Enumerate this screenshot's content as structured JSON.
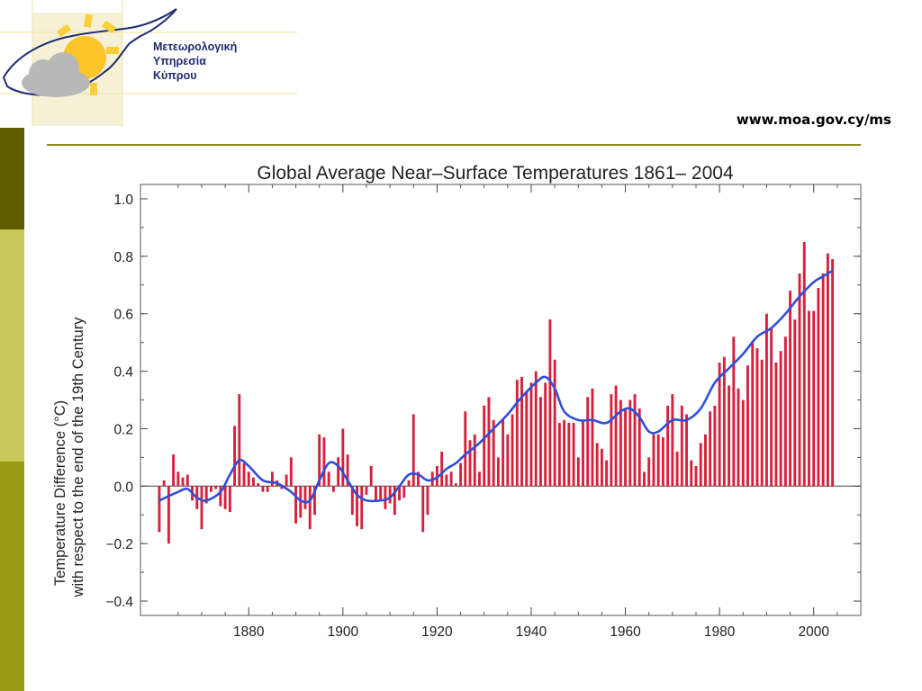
{
  "org": {
    "line1": "Μετεωρολογική",
    "line2": "Υπηρεσία",
    "line3": "Κύπρου"
  },
  "site": {
    "url": "www.moa.gov.cy/ms"
  },
  "colors": {
    "bar": "#d6203c",
    "smooth_line": "#2e4fd8",
    "rule": "#8c8a1c",
    "stripe_dark": "#5e5e00",
    "stripe_light": "#c9c95a",
    "stripe_mid": "#9a9a10",
    "org_text": "#1e2a6e"
  },
  "chart_data": {
    "type": "bar",
    "title": "Global Average Near–Surface Temperatures 1861– 2004",
    "ylabel_line1": "Temperature Difference (°C)",
    "ylabel_line2": "with respect to the end of the 19th Century",
    "xlabel": "",
    "xlim": [
      1857,
      2010
    ],
    "ylim": [
      -0.45,
      1.05
    ],
    "xticks": [
      1880,
      1900,
      1920,
      1940,
      1960,
      1980,
      2000
    ],
    "yticks": [
      -0.4,
      -0.2,
      0.0,
      0.2,
      0.4,
      0.6,
      0.8,
      1.0
    ],
    "ytick_labels": [
      "−0.4",
      "−0.2",
      "0.0",
      "0.2",
      "0.4",
      "0.6",
      "0.8",
      "1.0"
    ],
    "grid": false,
    "series": [
      {
        "kind": "bar",
        "years": [
          1861,
          1862,
          1863,
          1864,
          1865,
          1866,
          1867,
          1868,
          1869,
          1870,
          1871,
          1872,
          1873,
          1874,
          1875,
          1876,
          1877,
          1878,
          1879,
          1880,
          1881,
          1882,
          1883,
          1884,
          1885,
          1886,
          1887,
          1888,
          1889,
          1890,
          1891,
          1892,
          1893,
          1894,
          1895,
          1896,
          1897,
          1898,
          1899,
          1900,
          1901,
          1902,
          1903,
          1904,
          1905,
          1906,
          1907,
          1908,
          1909,
          1910,
          1911,
          1912,
          1913,
          1914,
          1915,
          1916,
          1917,
          1918,
          1919,
          1920,
          1921,
          1922,
          1923,
          1924,
          1925,
          1926,
          1927,
          1928,
          1929,
          1930,
          1931,
          1932,
          1933,
          1934,
          1935,
          1936,
          1937,
          1938,
          1939,
          1940,
          1941,
          1942,
          1943,
          1944,
          1945,
          1946,
          1947,
          1948,
          1949,
          1950,
          1951,
          1952,
          1953,
          1954,
          1955,
          1956,
          1957,
          1958,
          1959,
          1960,
          1961,
          1962,
          1963,
          1964,
          1965,
          1966,
          1967,
          1968,
          1969,
          1970,
          1971,
          1972,
          1973,
          1974,
          1975,
          1976,
          1977,
          1978,
          1979,
          1980,
          1981,
          1982,
          1983,
          1984,
          1985,
          1986,
          1987,
          1988,
          1989,
          1990,
          1991,
          1992,
          1993,
          1994,
          1995,
          1996,
          1997,
          1998,
          1999,
          2000,
          2001,
          2002,
          2003,
          2004
        ],
        "values": [
          -0.16,
          0.02,
          -0.2,
          0.11,
          0.05,
          0.03,
          0.04,
          -0.05,
          -0.08,
          -0.15,
          -0.06,
          -0.02,
          -0.01,
          -0.07,
          -0.08,
          -0.09,
          0.21,
          0.32,
          0.08,
          0.05,
          0.03,
          0.01,
          -0.02,
          -0.02,
          0.05,
          0.02,
          -0.01,
          0.04,
          0.1,
          -0.13,
          -0.11,
          -0.08,
          -0.15,
          -0.1,
          0.18,
          0.17,
          0.05,
          -0.02,
          0.1,
          0.2,
          0.11,
          -0.1,
          -0.14,
          -0.15,
          -0.03,
          0.07,
          -0.05,
          -0.05,
          -0.08,
          -0.06,
          -0.1,
          -0.05,
          -0.04,
          0.02,
          0.25,
          0.05,
          -0.16,
          -0.1,
          0.05,
          0.07,
          0.12,
          0.04,
          0.05,
          0.01,
          0.08,
          0.26,
          0.16,
          0.18,
          0.05,
          0.28,
          0.31,
          0.23,
          0.1,
          0.23,
          0.18,
          0.25,
          0.37,
          0.38,
          0.33,
          0.36,
          0.4,
          0.31,
          0.36,
          0.58,
          0.44,
          0.22,
          0.23,
          0.22,
          0.22,
          0.1,
          0.23,
          0.31,
          0.34,
          0.15,
          0.13,
          0.09,
          0.32,
          0.35,
          0.3,
          0.27,
          0.3,
          0.32,
          0.27,
          0.05,
          0.1,
          0.18,
          0.18,
          0.17,
          0.28,
          0.32,
          0.12,
          0.28,
          0.25,
          0.09,
          0.07,
          0.15,
          0.18,
          0.26,
          0.28,
          0.43,
          0.45,
          0.35,
          0.52,
          0.34,
          0.3,
          0.42,
          0.5,
          0.48,
          0.44,
          0.6,
          0.55,
          0.43,
          0.47,
          0.52,
          0.68,
          0.58,
          0.74,
          0.85,
          0.61,
          0.61,
          0.69,
          0.74,
          0.81,
          0.79
        ]
      },
      {
        "kind": "line",
        "years": [
          1861,
          1865,
          1867,
          1869,
          1871,
          1874,
          1876,
          1878,
          1880,
          1883,
          1886,
          1889,
          1891,
          1893,
          1895,
          1897,
          1899,
          1901,
          1903,
          1905,
          1908,
          1910,
          1912,
          1914,
          1916,
          1918,
          1920,
          1922,
          1924,
          1926,
          1929,
          1932,
          1935,
          1938,
          1941,
          1943,
          1945,
          1947,
          1950,
          1953,
          1956,
          1959,
          1961,
          1963,
          1965,
          1967,
          1970,
          1973,
          1976,
          1979,
          1982,
          1985,
          1988,
          1991,
          1994,
          1997,
          2000,
          2002,
          2004
        ],
        "values": [
          -0.05,
          -0.02,
          -0.01,
          -0.04,
          -0.05,
          -0.02,
          0.04,
          0.09,
          0.07,
          0.02,
          0.01,
          -0.02,
          -0.05,
          -0.05,
          0.02,
          0.08,
          0.07,
          0.02,
          -0.03,
          -0.05,
          -0.05,
          -0.04,
          0.0,
          0.04,
          0.04,
          0.02,
          0.03,
          0.06,
          0.08,
          0.11,
          0.15,
          0.2,
          0.25,
          0.31,
          0.36,
          0.38,
          0.34,
          0.26,
          0.23,
          0.23,
          0.22,
          0.26,
          0.27,
          0.24,
          0.19,
          0.19,
          0.23,
          0.23,
          0.27,
          0.36,
          0.41,
          0.46,
          0.52,
          0.55,
          0.6,
          0.66,
          0.71,
          0.73,
          0.75
        ]
      }
    ]
  }
}
